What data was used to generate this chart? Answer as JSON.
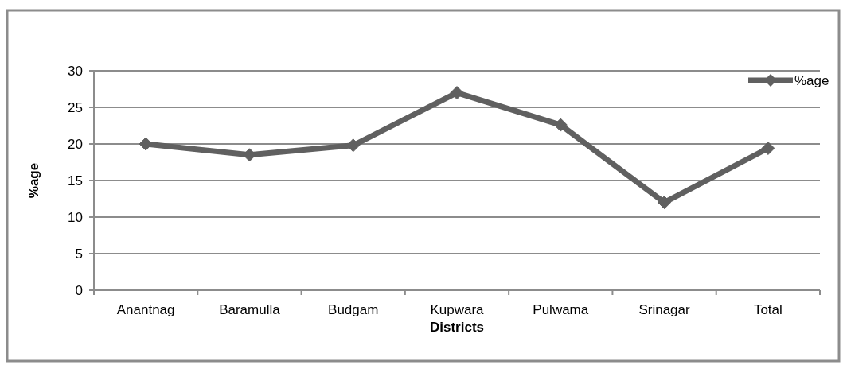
{
  "chart_data": {
    "type": "line",
    "xlabel": "Districts",
    "ylabel": "%age",
    "categories": [
      "Anantnag",
      "Baramulla",
      "Budgam",
      "Kupwara",
      "Pulwama",
      "Srinagar",
      "Total"
    ],
    "series": [
      {
        "name": "%age",
        "color": "#606060",
        "values": [
          20,
          18.5,
          19.8,
          27,
          22.6,
          12,
          19.4
        ]
      }
    ],
    "ylim": [
      0,
      30
    ],
    "yticks": [
      0,
      5,
      10,
      15,
      20,
      25,
      30
    ],
    "grid": "y",
    "legend": "top right",
    "marker": "diamond",
    "line_style": "solid"
  }
}
